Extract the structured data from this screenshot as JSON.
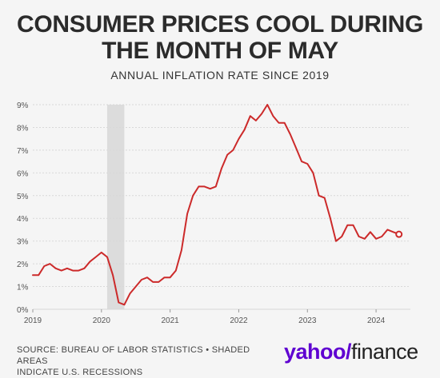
{
  "title_line1": "CONSUMER PRICES COOL DURING",
  "title_line2": "THE MONTH OF MAY",
  "subtitle": "ANNUAL INFLATION RATE SINCE 2019",
  "source_line1": "SOURCE: BUREAU OF LABOR STATISTICS • SHADED AREAS",
  "source_line2": "INDICATE U.S. RECESSIONS",
  "brand": {
    "text": "yahoo",
    "slash": "/",
    "suffix": "finance",
    "color": "#5f01d1"
  },
  "colors": {
    "line": "#cc2a2a",
    "grid": "#d8d8d8",
    "recession": "#dcdcdc"
  },
  "chart_data": {
    "type": "line",
    "title": "ANNUAL INFLATION RATE SINCE 2019",
    "xlabel": "",
    "ylabel": "",
    "ylim": [
      0,
      9
    ],
    "xlim": [
      "2019-01",
      "2024-05"
    ],
    "y_ticks": [
      "0%",
      "1%",
      "2%",
      "3%",
      "4%",
      "5%",
      "6%",
      "7%",
      "8%",
      "9%"
    ],
    "x_ticks": [
      "2019",
      "2020",
      "2021",
      "2022",
      "2023",
      "2024"
    ],
    "grid": true,
    "recession_shading": [
      [
        "2020-02",
        "2020-04"
      ]
    ],
    "series": [
      {
        "x": [
          "2019-01",
          "2019-02",
          "2019-03",
          "2019-04",
          "2019-05",
          "2019-06",
          "2019-07",
          "2019-08",
          "2019-09",
          "2019-10",
          "2019-11",
          "2019-12",
          "2020-01",
          "2020-02",
          "2020-03",
          "2020-04",
          "2020-05",
          "2020-06",
          "2020-07",
          "2020-08",
          "2020-09",
          "2020-10",
          "2020-11",
          "2020-12",
          "2021-01",
          "2021-02",
          "2021-03",
          "2021-04",
          "2021-05",
          "2021-06",
          "2021-07",
          "2021-08",
          "2021-09",
          "2021-10",
          "2021-11",
          "2021-12",
          "2022-01",
          "2022-02",
          "2022-03",
          "2022-04",
          "2022-05",
          "2022-06",
          "2022-07",
          "2022-08",
          "2022-09",
          "2022-10",
          "2022-11",
          "2022-12",
          "2023-01",
          "2023-02",
          "2023-03",
          "2023-04",
          "2023-05",
          "2023-06",
          "2023-07",
          "2023-08",
          "2023-09",
          "2023-10",
          "2023-11",
          "2023-12",
          "2024-01",
          "2024-02",
          "2024-03",
          "2024-04",
          "2024-05"
        ],
        "values": [
          1.5,
          1.5,
          1.9,
          2.0,
          1.8,
          1.7,
          1.8,
          1.7,
          1.7,
          1.8,
          2.1,
          2.3,
          2.5,
          2.3,
          1.5,
          0.3,
          0.2,
          0.7,
          1.0,
          1.3,
          1.4,
          1.2,
          1.2,
          1.4,
          1.4,
          1.7,
          2.6,
          4.2,
          5.0,
          5.4,
          5.4,
          5.3,
          5.4,
          6.2,
          6.8,
          7.0,
          7.5,
          7.9,
          8.5,
          8.3,
          8.6,
          9.0,
          8.5,
          8.2,
          8.2,
          7.7,
          7.1,
          6.5,
          6.4,
          6.0,
          5.0,
          4.9,
          4.0,
          3.0,
          3.2,
          3.7,
          3.7,
          3.2,
          3.1,
          3.4,
          3.1,
          3.2,
          3.5,
          3.4,
          3.3
        ]
      }
    ]
  }
}
